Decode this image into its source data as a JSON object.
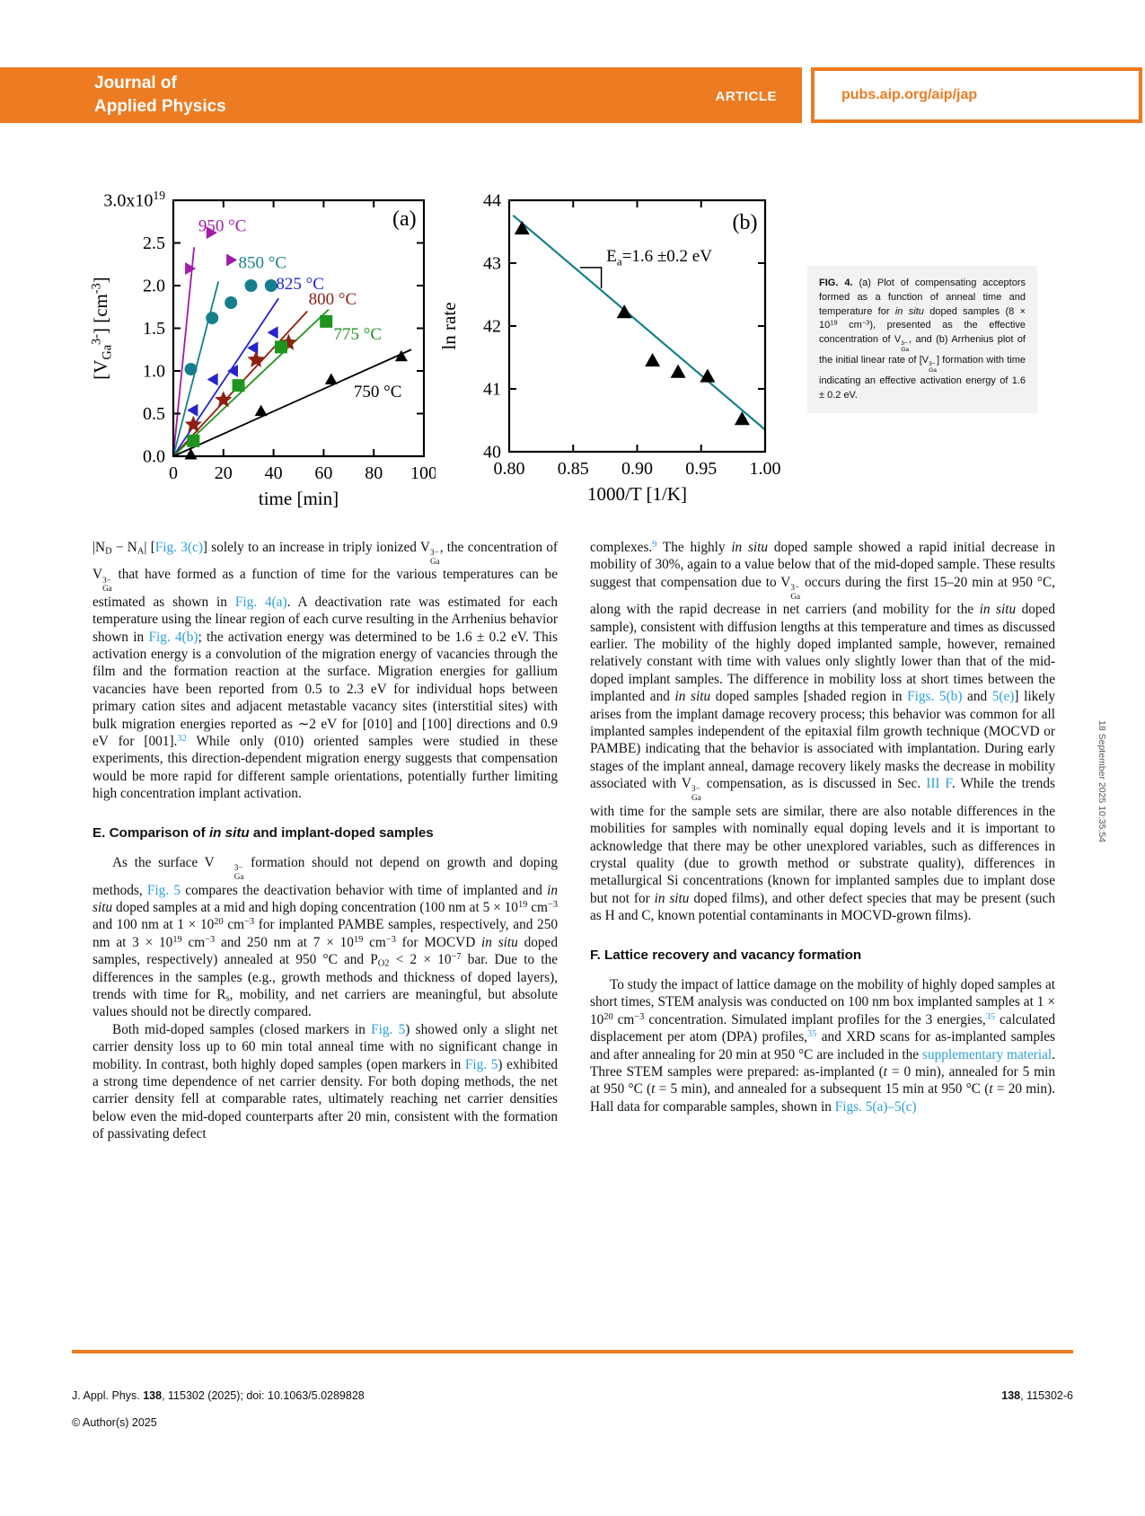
{
  "header": {
    "journal_line1": "Journal of",
    "journal_line2": "Applied Physics",
    "article_label": "ARTICLE",
    "site_url": "pubs.aip.org/aip/jap"
  },
  "colors": {
    "accent_orange": "#ed7b22",
    "link_blue": "#2b9fd8",
    "fit_teal": "#15808c",
    "caption_bg": "#f2f2f0"
  },
  "datestamp": "18 September 2025 10:35:54",
  "figure_caption_runs": [
    {
      "t": "FIG. 4.",
      "s": "b"
    },
    {
      "t": " (a) Plot of compensating acceptors formed as a function of anneal time and temperature for "
    },
    {
      "t": "in situ",
      "s": "i"
    },
    {
      "t": " doped samples (8 × 10"
    },
    {
      "t": "19",
      "s": "sup"
    },
    {
      "t": " cm"
    },
    {
      "t": "−3",
      "s": "sup"
    },
    {
      "t": "), presented as the effective concentration of "
    },
    {
      "t": "V|3−|Ga",
      "s": "vga"
    },
    {
      "t": ", and (b) Arrhenius plot of the initial linear rate of ["
    },
    {
      "t": "V|3−|Ga",
      "s": "vga"
    },
    {
      "t": "] formation with time indicating an effective activation energy of 1.6 ± 0.2 eV."
    }
  ],
  "chart_data": [
    {
      "type": "scatter",
      "panel": "a",
      "panel_label": {
        "text": "(a)",
        "x": 97,
        "y": 2.79
      },
      "xlabel": "time [min]",
      "ylabel_runs": [
        {
          "t": "[V"
        },
        {
          "t": "Ga",
          "s": "sub"
        },
        {
          "t": "3-",
          "s": "sup"
        },
        {
          "t": "] [cm"
        },
        {
          "t": "-3",
          "s": "sup"
        },
        {
          "t": "]"
        }
      ],
      "xlim": [
        0,
        100
      ],
      "ylim": [
        0,
        3
      ],
      "xticks": [
        0,
        20,
        40,
        60,
        80,
        100
      ],
      "xtick_labels": [
        "0",
        "20",
        "40",
        "60",
        "80",
        "100"
      ],
      "yticks": [
        0,
        0.5,
        1,
        1.5,
        2,
        2.5,
        3
      ],
      "ytick_labels": [
        "0.0",
        "0.5",
        "1.0",
        "1.5",
        "2.0",
        "2.5",
        "3.0x10^19"
      ],
      "grid": false,
      "series": [
        {
          "name": "950 °C",
          "color": "#a21ca8",
          "marker": "triangle-right",
          "points": [
            [
              6.5,
              2.2
            ],
            [
              15,
              2.62
            ],
            [
              23,
              2.3
            ]
          ],
          "fit_line": [
            [
              0,
              0
            ],
            [
              8.3,
              2.45
            ]
          ],
          "label_pos": [
            10,
            2.7
          ]
        },
        {
          "name": "850 °C",
          "color": "#15808c",
          "marker": "circle",
          "points": [
            [
              7,
              1.02
            ],
            [
              15.5,
              1.62
            ],
            [
              23,
              1.8
            ],
            [
              31,
              2.0
            ],
            [
              39,
              2.0
            ]
          ],
          "fit_line": [
            [
              0,
              0
            ],
            [
              18,
              2.05
            ]
          ],
          "label_pos": [
            26,
            2.27
          ]
        },
        {
          "name": "825 °C",
          "color": "#2424cc",
          "marker": "triangle-left",
          "points": [
            [
              8,
              0.54
            ],
            [
              16,
              0.9
            ],
            [
              24,
              1.0
            ],
            [
              32,
              1.27
            ],
            [
              40,
              1.45
            ]
          ],
          "fit_line": [
            [
              0,
              0
            ],
            [
              42,
              1.85
            ]
          ],
          "label_pos": [
            41,
            2.02
          ]
        },
        {
          "name": "800 °C",
          "color": "#8e2012",
          "marker": "star",
          "points": [
            [
              8,
              0.37
            ],
            [
              20,
              0.66
            ],
            [
              33,
              1.13
            ],
            [
              46,
              1.33
            ]
          ],
          "fit_line": [
            [
              0,
              0
            ],
            [
              53.5,
              1.7
            ]
          ],
          "label_pos": [
            54,
            1.84
          ]
        },
        {
          "name": "775 °C",
          "color": "#1f941f",
          "marker": "square",
          "points": [
            [
              8,
              0.18
            ],
            [
              26,
              0.83
            ],
            [
              43,
              1.28
            ],
            [
              61,
              1.58
            ]
          ],
          "fit_line": [
            [
              0,
              0
            ],
            [
              62,
              1.72
            ]
          ],
          "label_pos": [
            64,
            1.43
          ]
        },
        {
          "name": "750 °C",
          "color": "#000000",
          "marker": "triangle-up",
          "points": [
            [
              7,
              0.02
            ],
            [
              35,
              0.53
            ],
            [
              63,
              0.9
            ],
            [
              91,
              1.17
            ]
          ],
          "fit_line": [
            [
              0,
              0
            ],
            [
              95,
              1.25
            ]
          ],
          "label_pos": [
            72,
            0.76
          ]
        }
      ]
    },
    {
      "type": "scatter",
      "panel": "b",
      "panel_label": {
        "text": "(b)",
        "x": 0.994,
        "y": 43.66
      },
      "xlabel": "1000/T [1/K]",
      "ylabel_runs": [
        {
          "t": "ln rate"
        }
      ],
      "xlim": [
        0.8,
        1.0
      ],
      "ylim": [
        40,
        44
      ],
      "xticks": [
        0.8,
        0.85,
        0.9,
        0.95,
        1.0
      ],
      "xtick_labels": [
        "0.80",
        "0.85",
        "0.90",
        "0.95",
        "1.00"
      ],
      "yticks": [
        40,
        41,
        42,
        43,
        44
      ],
      "ytick_labels": [
        "40",
        "41",
        "42",
        "43",
        "44"
      ],
      "grid": false,
      "series": [
        {
          "name": "initial rate data",
          "color": "#000000",
          "marker": "triangle-up",
          "msize": 8.5,
          "points": [
            [
              0.81,
              43.55
            ],
            [
              0.89,
              42.22
            ],
            [
              0.912,
              41.45
            ],
            [
              0.932,
              41.27
            ],
            [
              0.955,
              41.2
            ],
            [
              0.982,
              40.52
            ]
          ]
        }
      ],
      "fit_line": {
        "color": "#15808c",
        "from": [
          0.803,
          43.76
        ],
        "to": [
          1.0,
          40.35
        ]
      },
      "annotation": {
        "runs": [
          {
            "t": "E"
          },
          {
            "t": "a",
            "s": "sub"
          },
          {
            "t": "=1.6 ±0.2 eV"
          }
        ],
        "x": 0.876,
        "y": 43.03
      },
      "slope_marker": {
        "x1": 0.8555,
        "x2": 0.872,
        "y_top": 42.93,
        "y_bottom": 42.6
      }
    }
  ],
  "body": {
    "left_column": [
      {
        "kind": "p",
        "indent": false,
        "runs": [
          {
            "t": "|N"
          },
          {
            "t": "D",
            "s": "sub"
          },
          {
            "t": " − N"
          },
          {
            "t": "A",
            "s": "sub"
          },
          {
            "t": "| ["
          },
          {
            "t": "Fig. 3(c)",
            "s": "link"
          },
          {
            "t": "] solely to an increase in triply ionized "
          },
          {
            "t": "V|3−|Ga",
            "s": "vga"
          },
          {
            "t": ", the concentration of "
          },
          {
            "t": "V|3−|Ga",
            "s": "vga"
          },
          {
            "t": " that have formed as a function of time for the various temperatures can be estimated as shown in "
          },
          {
            "t": "Fig. 4(a)",
            "s": "link"
          },
          {
            "t": ". A deactivation rate was estimated for each temperature using the linear region of each curve resulting in the Arrhenius behavior shown in "
          },
          {
            "t": "Fig. 4(b)",
            "s": "link"
          },
          {
            "t": "; the activation energy was determined to be 1.6 ± 0.2 eV. This activation energy is a convolution of the migration energy of vacancies through the film and the formation reaction at the surface. Migration energies for gallium vacancies have been reported from 0.5 to 2.3 eV for individual hops between primary cation sites and adjacent metastable vacancy sites (interstitial sites) with bulk migration energies reported as ∼2 eV for [010] and [100] directions and 0.9 eV for [001]."
          },
          {
            "t": "32",
            "s": "suplink"
          },
          {
            "t": " While only (010) oriented samples were studied in these experiments, this direction-dependent migration energy suggests that compensation would be more rapid for different sample orientations, potentially further limiting high concentration implant activation."
          }
        ]
      },
      {
        "kind": "h",
        "runs": [
          {
            "t": "E. Comparison of "
          },
          {
            "t": "in situ",
            "s": "i"
          },
          {
            "t": " and implant-doped samples"
          }
        ]
      },
      {
        "kind": "p",
        "indent": true,
        "runs": [
          {
            "t": "As the surface "
          },
          {
            "t": "V|3−|Ga",
            "s": "vga"
          },
          {
            "t": " formation should not depend on growth and doping methods, "
          },
          {
            "t": "Fig. 5",
            "s": "link"
          },
          {
            "t": " compares the deactivation behavior with time of implanted and "
          },
          {
            "t": "in situ",
            "s": "i"
          },
          {
            "t": " doped samples at a mid and high doping concentration (100 nm at 5 × 10"
          },
          {
            "t": "19",
            "s": "sup"
          },
          {
            "t": " cm"
          },
          {
            "t": "−3",
            "s": "sup"
          },
          {
            "t": " and 100 nm at 1 × 10"
          },
          {
            "t": "20",
            "s": "sup"
          },
          {
            "t": " cm"
          },
          {
            "t": "−3",
            "s": "sup"
          },
          {
            "t": " for implanted PAMBE samples, respectively, and 250 nm at 3 × 10"
          },
          {
            "t": "19",
            "s": "sup"
          },
          {
            "t": " cm"
          },
          {
            "t": "−3",
            "s": "sup"
          },
          {
            "t": " and 250 nm at 7 × 10"
          },
          {
            "t": "19",
            "s": "sup"
          },
          {
            "t": " cm"
          },
          {
            "t": "−3",
            "s": "sup"
          },
          {
            "t": " for MOCVD "
          },
          {
            "t": "in situ",
            "s": "i"
          },
          {
            "t": " doped samples, respectively) annealed at 950 °C and P"
          },
          {
            "t": "O2",
            "s": "sub"
          },
          {
            "t": " < 2 × 10"
          },
          {
            "t": "−7",
            "s": "sup"
          },
          {
            "t": " bar. Due to the differences in the samples (e.g., growth methods and thickness of doped layers), trends with time for R"
          },
          {
            "t": "s",
            "s": "sub"
          },
          {
            "t": ", mobility, and net carriers are meaningful, but absolute values should not be directly compared."
          }
        ]
      },
      {
        "kind": "p",
        "indent": true,
        "runs": [
          {
            "t": "Both mid-doped samples (closed markers in "
          },
          {
            "t": "Fig. 5",
            "s": "link"
          },
          {
            "t": ") showed only a slight net carrier density loss up to 60 min total anneal time with no significant change in mobility. In contrast, both highly doped samples (open markers in "
          },
          {
            "t": "Fig. 5",
            "s": "link"
          },
          {
            "t": ") exhibited a strong time dependence of net carrier density. For both doping methods, the net carrier density fell at comparable rates, ultimately reaching net carrier densities below even the mid-doped counterparts after 20 min, consistent with the formation of passivating defect"
          }
        ]
      }
    ],
    "right_column": [
      {
        "kind": "p",
        "indent": false,
        "runs": [
          {
            "t": "complexes."
          },
          {
            "t": "9",
            "s": "suplink"
          },
          {
            "t": " The highly "
          },
          {
            "t": "in situ",
            "s": "i"
          },
          {
            "t": " doped sample showed a rapid initial decrease in mobility of 30%, again to a value below that of the mid-doped sample. These results suggest that compensation due to "
          },
          {
            "t": "V|3−|Ga",
            "s": "vga"
          },
          {
            "t": " occurs during the first 15–20 min at 950 °C, along with the rapid decrease in net carriers (and mobility for the "
          },
          {
            "t": "in situ",
            "s": "i"
          },
          {
            "t": " doped sample), consistent with diffusion lengths at this temperature and times as discussed earlier. The mobility of the highly doped implanted sample, however, remained relatively constant with time with values only slightly lower than that of the mid-doped implant samples. The difference in mobility loss at short times between the implanted and "
          },
          {
            "t": "in situ",
            "s": "i"
          },
          {
            "t": " doped samples [shaded region in "
          },
          {
            "t": "Figs. 5(b)",
            "s": "link"
          },
          {
            "t": " and "
          },
          {
            "t": "5(e)",
            "s": "link"
          },
          {
            "t": "] likely arises from the implant damage recovery process; this behavior was common for all implanted samples independent of the epitaxial film growth technique (MOCVD or PAMBE) indicating that the behavior is associated with implantation. During early stages of the implant anneal, damage recovery likely masks the decrease in mobility associated with "
          },
          {
            "t": "V|3−|Ga",
            "s": "vga"
          },
          {
            "t": " compensation, as is discussed in Sec. "
          },
          {
            "t": "III F",
            "s": "link"
          },
          {
            "t": ". While the trends with time for the sample sets are similar, there are also notable differences in the mobilities for samples with nominally equal doping levels and it is important to acknowledge that there may be other unexplored variables, such as differences in crystal quality (due to growth method or substrate quality), differences in metallurgical Si concentrations (known for implanted samples due to implant dose but not for "
          },
          {
            "t": "in situ",
            "s": "i"
          },
          {
            "t": " doped films), and other defect species that may be present (such as H and C, known potential contaminants in MOCVD-grown films)."
          }
        ]
      },
      {
        "kind": "h",
        "runs": [
          {
            "t": "F. Lattice recovery and vacancy formation"
          }
        ]
      },
      {
        "kind": "p",
        "indent": true,
        "runs": [
          {
            "t": "To study the impact of lattice damage on the mobility of highly doped samples at short times, STEM analysis was conducted on 100 nm box implanted samples at 1 × 10"
          },
          {
            "t": "20",
            "s": "sup"
          },
          {
            "t": " cm"
          },
          {
            "t": "−3",
            "s": "sup"
          },
          {
            "t": " concentration. Simulated implant profiles for the 3 energies,"
          },
          {
            "t": "35",
            "s": "suplink"
          },
          {
            "t": " calculated displacement per atom (DPA) profiles,"
          },
          {
            "t": "35",
            "s": "suplink"
          },
          {
            "t": " and XRD scans for as-implanted samples and after annealing for 20 min at 950 °C are included in the "
          },
          {
            "t": "supplementary material",
            "s": "link"
          },
          {
            "t": ". Three STEM samples were prepared: as-implanted ("
          },
          {
            "t": "t",
            "s": "i"
          },
          {
            "t": " = 0 min), annealed for 5 min at 950 °C ("
          },
          {
            "t": "t",
            "s": "i"
          },
          {
            "t": " = 5 min), and annealed for a subsequent 15 min at 950 °C ("
          },
          {
            "t": "t",
            "s": "i"
          },
          {
            "t": " = 20 min). Hall data for comparable samples, shown in "
          },
          {
            "t": "Figs. 5(a)–5(c)",
            "s": "link"
          }
        ]
      }
    ]
  },
  "footer": {
    "left_runs": [
      {
        "t": "J. Appl. Phys. "
      },
      {
        "t": "138",
        "s": "b"
      },
      {
        "t": ", 115302 (2025); doi: 10.1063/5.0289828"
      }
    ],
    "right_runs": [
      {
        "t": "138",
        "s": "b"
      },
      {
        "t": ", 115302-6"
      }
    ],
    "copyright": "© Author(s) 2025"
  }
}
